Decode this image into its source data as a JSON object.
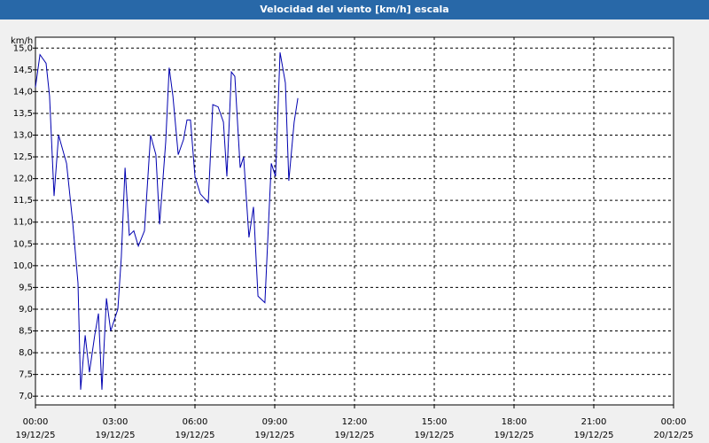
{
  "chart_data": {
    "type": "line",
    "title": "Velocidad del viento [km/h] escala",
    "ylabel": "km/h",
    "x": [
      0,
      0.17,
      0.4,
      0.53,
      0.7,
      0.87,
      1.17,
      1.4,
      1.6,
      1.7,
      1.87,
      2.03,
      2.23,
      2.37,
      2.5,
      2.67,
      2.83,
      3.1,
      3.23,
      3.37,
      3.53,
      3.7,
      3.87,
      4.1,
      4.33,
      4.53,
      4.67,
      4.9,
      5.03,
      5.17,
      5.37,
      5.57,
      5.7,
      5.83,
      6.0,
      6.2,
      6.5,
      6.67,
      6.87,
      7.07,
      7.2,
      7.37,
      7.5,
      7.7,
      7.83,
      8.03,
      8.2,
      8.37,
      8.63,
      8.87,
      9.03,
      9.2,
      9.4,
      9.53,
      9.73,
      9.87
    ],
    "series": [
      {
        "color": "#0000b0",
        "values": [
          14.1,
          14.85,
          14.65,
          13.9,
          11.6,
          13.0,
          12.35,
          11.0,
          9.6,
          7.15,
          8.4,
          7.55,
          8.4,
          8.9,
          7.15,
          9.25,
          8.5,
          9.0,
          10.2,
          12.25,
          10.7,
          10.8,
          10.45,
          10.8,
          13.0,
          12.55,
          10.95,
          12.85,
          14.55,
          13.9,
          12.55,
          12.9,
          13.35,
          13.35,
          12.05,
          11.65,
          11.45,
          13.7,
          13.65,
          13.3,
          12.05,
          14.45,
          14.35,
          12.25,
          12.5,
          10.65,
          11.35,
          9.3,
          9.15,
          12.35,
          12.05,
          14.9,
          14.2,
          11.95,
          13.3,
          13.85
        ]
      }
    ],
    "xlim": [
      0,
      24
    ],
    "ylim": [
      6.8,
      15.25
    ],
    "xticks": [
      {
        "value": 0,
        "label": "00:00\n19/12/25"
      },
      {
        "value": 3,
        "label": "03:00\n19/12/25"
      },
      {
        "value": 6,
        "label": "06:00\n19/12/25"
      },
      {
        "value": 9,
        "label": "09:00\n19/12/25"
      },
      {
        "value": 12,
        "label": "12:00\n19/12/25"
      },
      {
        "value": 15,
        "label": "15:00\n19/12/25"
      },
      {
        "value": 18,
        "label": "18:00\n19/12/25"
      },
      {
        "value": 21,
        "label": "21:00\n19/12/25"
      },
      {
        "value": 24,
        "label": "00:00\n20/12/25"
      }
    ],
    "yticks": [
      {
        "value": 7,
        "label": "7,0"
      },
      {
        "value": 7.5,
        "label": "7,5"
      },
      {
        "value": 8,
        "label": "8,0"
      },
      {
        "value": 8.5,
        "label": "8,5"
      },
      {
        "value": 9,
        "label": "9,0"
      },
      {
        "value": 9.5,
        "label": "9,5"
      },
      {
        "value": 10,
        "label": "10,0"
      },
      {
        "value": 10.5,
        "label": "10,5"
      },
      {
        "value": 11,
        "label": "11,0"
      },
      {
        "value": 11.5,
        "label": "11,5"
      },
      {
        "value": 12,
        "label": "12,0"
      },
      {
        "value": 12.5,
        "label": "12,5"
      },
      {
        "value": 13,
        "label": "13,0"
      },
      {
        "value": 13.5,
        "label": "13,5"
      },
      {
        "value": 14,
        "label": "14,0"
      },
      {
        "value": 14.5,
        "label": "14,5"
      },
      {
        "value": 15,
        "label": "15,0"
      }
    ],
    "grid": true
  }
}
